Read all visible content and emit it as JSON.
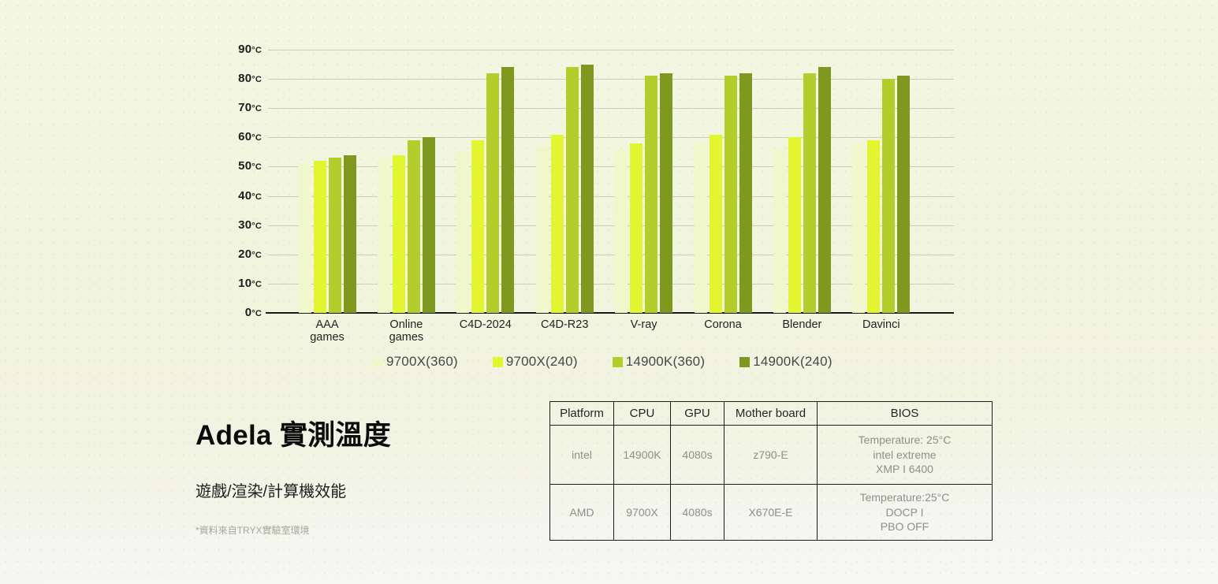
{
  "chart_data": {
    "type": "bar",
    "title": "",
    "categories": [
      "AAA\ngames",
      "Online\ngames",
      "C4D-2024",
      "C4D-R23",
      "V-ray",
      "Corona",
      "Blender",
      "Davinci"
    ],
    "series": [
      {
        "name": "9700X(360)",
        "color": "#f0f7cb",
        "values": [
          51,
          53,
          55,
          57,
          56,
          58,
          56,
          58
        ]
      },
      {
        "name": "9700X(240)",
        "color": "#e3f52e",
        "values": [
          52,
          54,
          59,
          61,
          58,
          61,
          60,
          59
        ]
      },
      {
        "name": "14900K(360)",
        "color": "#b3cd2b",
        "values": [
          53,
          59,
          82,
          84,
          81,
          81,
          82,
          80
        ]
      },
      {
        "name": "14900K(240)",
        "color": "#7f981e",
        "values": [
          54,
          60,
          84,
          85,
          82,
          82,
          84,
          81
        ]
      }
    ],
    "ylim": [
      0,
      90
    ],
    "ytick_step": 10,
    "y_unit": "°C",
    "grid": true,
    "legend_position": "bottom"
  },
  "info": {
    "title": "Adela 實測溫度",
    "subtitle": "遊戲/渲染/計算機效能",
    "footnote": "*資料來自TRYX實驗室環境"
  },
  "spec_table": {
    "headers": [
      "Platform",
      "CPU",
      "GPU",
      "Mother board",
      "BIOS"
    ],
    "rows": [
      [
        "intel",
        "14900K",
        "4080s",
        "z790-E",
        "Temperature: 25°C\nintel extreme\nXMP I 6400"
      ],
      [
        "AMD",
        "9700X",
        "4080s",
        "X670E-E",
        "Temperature:25°C\nDOCP I\nPBO OFF"
      ]
    ]
  }
}
